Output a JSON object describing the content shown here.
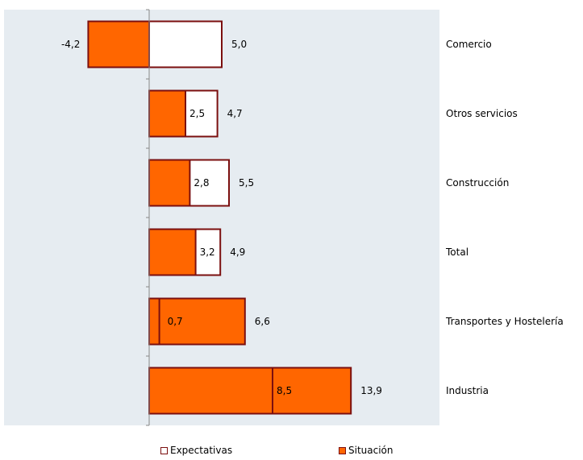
{
  "chart_data": {
    "type": "bar",
    "orientation": "horizontal",
    "categories": [
      "Comercio",
      "Otros servicios",
      "Construcción",
      "Total",
      "Transportes y Hostelería",
      "Industria"
    ],
    "series": [
      {
        "name": "Expectativas",
        "values": [
          5.0,
          4.7,
          5.5,
          4.9,
          6.6,
          13.9
        ],
        "labels": [
          "5,0",
          "4,7",
          "5,5",
          "4,9",
          "6,6",
          "13,9"
        ]
      },
      {
        "name": "Situación",
        "values": [
          -4.2,
          2.5,
          2.8,
          3.2,
          0.7,
          8.5
        ],
        "labels": [
          "-4,2",
          "2,5",
          "2,8",
          "3,2",
          "0,7",
          "8,5"
        ]
      }
    ],
    "legend_position": "bottom",
    "grid": false,
    "xlim": [
      -8.6,
      19.3
    ]
  },
  "colors": {
    "plot_background": "#e6ecf1",
    "expectativas_fill": "#ffffff",
    "situacion_fill": "#ff6600",
    "bar_border": "#7b0f0f",
    "axis": "#888888"
  }
}
